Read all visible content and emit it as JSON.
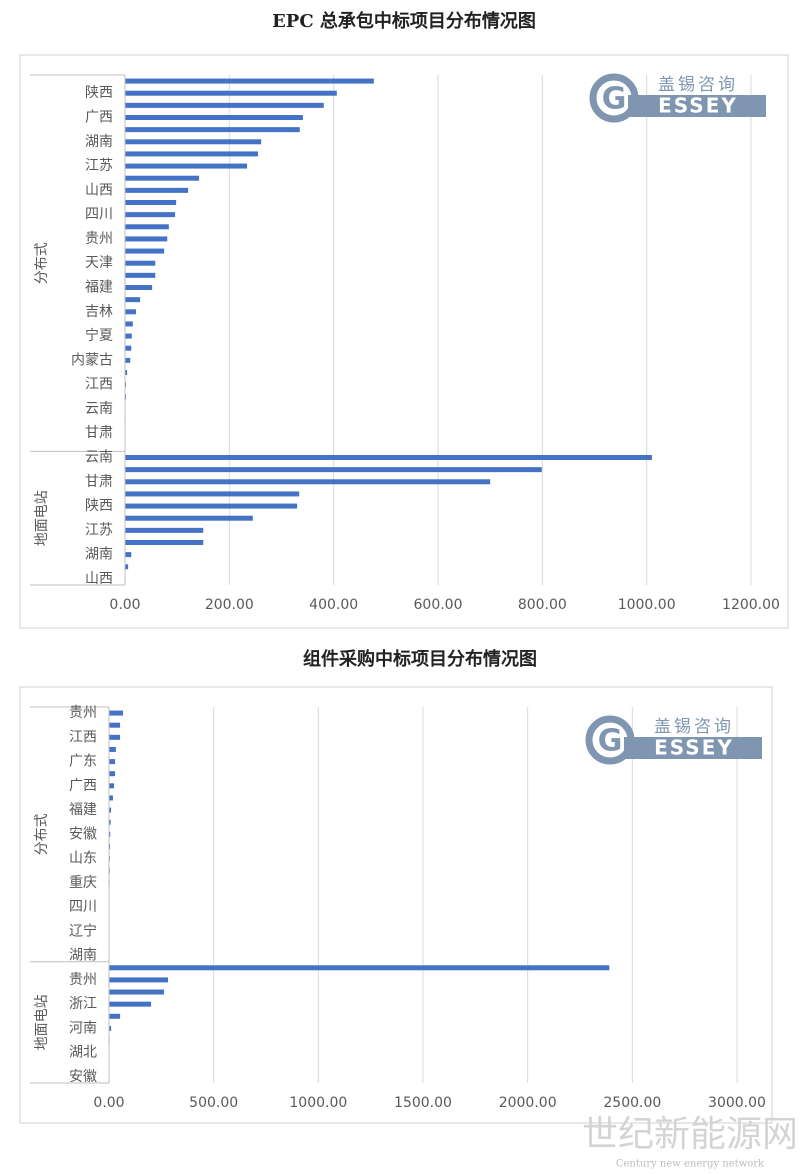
{
  "chart_data": [
    {
      "type": "bar",
      "orientation": "horizontal",
      "title": "EPC 总承包中标项目分布情况图",
      "color": "#4472c4",
      "grid": true,
      "xlim": [
        0,
        1200
      ],
      "xticks": [
        {
          "value": 0,
          "label": "0.00"
        },
        {
          "value": 200,
          "label": "200.00"
        },
        {
          "value": 400,
          "label": "400.00"
        },
        {
          "value": 600,
          "label": "600.00"
        },
        {
          "value": 800,
          "label": "800.00"
        },
        {
          "value": 1000,
          "label": "1000.00"
        },
        {
          "value": 1200,
          "label": "1200.00"
        }
      ],
      "groups": [
        {
          "name": "分布式",
          "categories": [
            null,
            "陕西",
            null,
            "广西",
            null,
            "湖南",
            null,
            "江苏",
            null,
            "山西",
            null,
            "四川",
            null,
            "贵州",
            null,
            "天津",
            null,
            "福建",
            null,
            "吉林",
            null,
            "宁夏",
            null,
            "内蒙古",
            null,
            "江西",
            null,
            "云南",
            null,
            "甘肃",
            null
          ],
          "values": [
            477,
            406,
            381,
            341,
            335,
            261,
            255,
            234,
            142,
            121,
            98,
            96,
            84,
            81,
            75,
            58,
            58,
            52,
            29,
            21,
            15,
            13,
            12,
            10,
            4,
            2,
            2,
            1,
            1,
            0.5,
            0.5
          ]
        },
        {
          "name": "地面电站",
          "categories": [
            "云南",
            null,
            "甘肃",
            null,
            "陕西",
            null,
            "江苏",
            null,
            "湖南",
            null,
            "山西"
          ],
          "values": [
            1010,
            799,
            700,
            334,
            330,
            245,
            150,
            150,
            12,
            6,
            1
          ]
        }
      ]
    },
    {
      "type": "bar",
      "orientation": "horizontal",
      "title": "组件采购中标项目分布情况图",
      "color": "#4472c4",
      "grid": true,
      "xlim": [
        0,
        3000
      ],
      "xticks": [
        {
          "value": 0,
          "label": "0.00"
        },
        {
          "value": 500,
          "label": "500.00"
        },
        {
          "value": 1000,
          "label": "1000.00"
        },
        {
          "value": 1500,
          "label": "1500.00"
        },
        {
          "value": 2000,
          "label": "2000.00"
        },
        {
          "value": 2500,
          "label": "2500.00"
        },
        {
          "value": 3000,
          "label": "3000.00"
        }
      ],
      "groups": [
        {
          "name": "分布式",
          "categories": [
            "贵州",
            null,
            "江西",
            null,
            "广东",
            null,
            "广西",
            null,
            "福建",
            null,
            "安徽",
            null,
            "山东",
            null,
            "重庆",
            null,
            "四川",
            null,
            "辽宁",
            null,
            "湖南"
          ],
          "values": [
            67,
            53,
            53,
            33,
            29,
            29,
            24,
            19,
            10,
            8,
            6,
            5,
            4,
            4,
            3,
            2,
            2,
            1,
            1,
            1,
            1
          ]
        },
        {
          "name": "地面电站",
          "categories": [
            null,
            "贵州",
            null,
            "浙江",
            null,
            "河南",
            null,
            "湖北",
            null,
            "安徽"
          ],
          "values": [
            2390,
            282,
            263,
            201,
            53,
            10,
            3,
            2,
            1,
            1
          ]
        }
      ]
    }
  ],
  "logo": {
    "cn": "盖锡咨询",
    "en": "ESSEY",
    "initial": "G"
  },
  "watermark": {
    "cn": "世纪新能源网",
    "en": "Century new energy network"
  }
}
